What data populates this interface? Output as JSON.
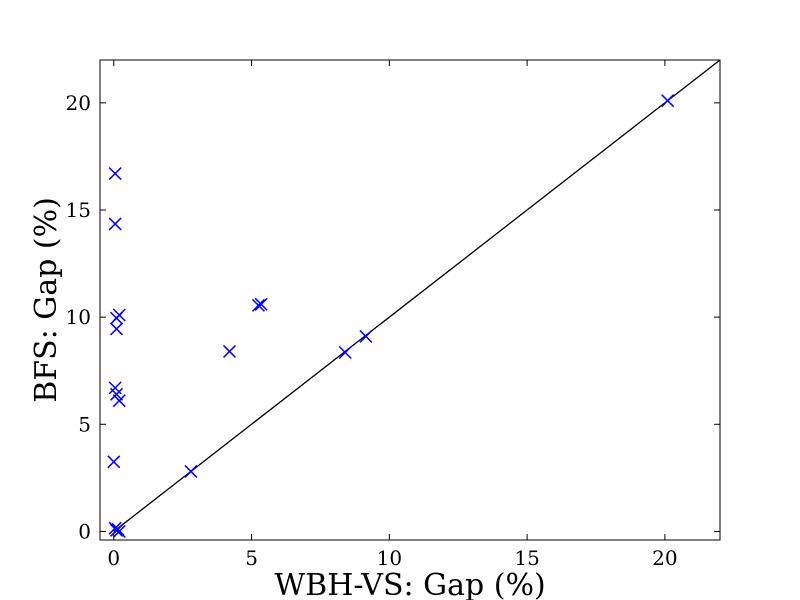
{
  "chart_data": {
    "type": "scatter",
    "title": "",
    "xlabel": "WBH-VS: Gap (%)",
    "ylabel": "BFS: Gap (%)",
    "xlim": [
      -0.5,
      22
    ],
    "ylim": [
      -0.4,
      22
    ],
    "xticks": [
      0,
      5,
      10,
      15,
      20
    ],
    "yticks": [
      0,
      5,
      10,
      15,
      20
    ],
    "grid": false,
    "marker": "x",
    "marker_color": "#0000ff",
    "reference_line": {
      "from": [
        0,
        0
      ],
      "to": [
        22,
        22
      ],
      "color": "#000000"
    },
    "series": [
      {
        "points": [
          {
            "x": 0.05,
            "y": 16.7
          },
          {
            "x": 0.05,
            "y": 14.35
          },
          {
            "x": 0.2,
            "y": 10.1
          },
          {
            "x": 0.1,
            "y": 9.95
          },
          {
            "x": 0.1,
            "y": 9.45
          },
          {
            "x": 0.05,
            "y": 6.7
          },
          {
            "x": 0.1,
            "y": 6.4
          },
          {
            "x": 0.2,
            "y": 6.1
          },
          {
            "x": 0.0,
            "y": 3.25
          },
          {
            "x": 0.05,
            "y": 0.15
          },
          {
            "x": 0.1,
            "y": 0.05
          },
          {
            "x": 0.2,
            "y": 0.0
          },
          {
            "x": 0.15,
            "y": 0.1
          },
          {
            "x": 2.8,
            "y": 2.8
          },
          {
            "x": 4.2,
            "y": 8.4
          },
          {
            "x": 5.25,
            "y": 10.55
          },
          {
            "x": 5.35,
            "y": 10.6
          },
          {
            "x": 8.4,
            "y": 8.35
          },
          {
            "x": 9.15,
            "y": 9.1
          },
          {
            "x": 20.1,
            "y": 20.1
          }
        ]
      }
    ]
  }
}
